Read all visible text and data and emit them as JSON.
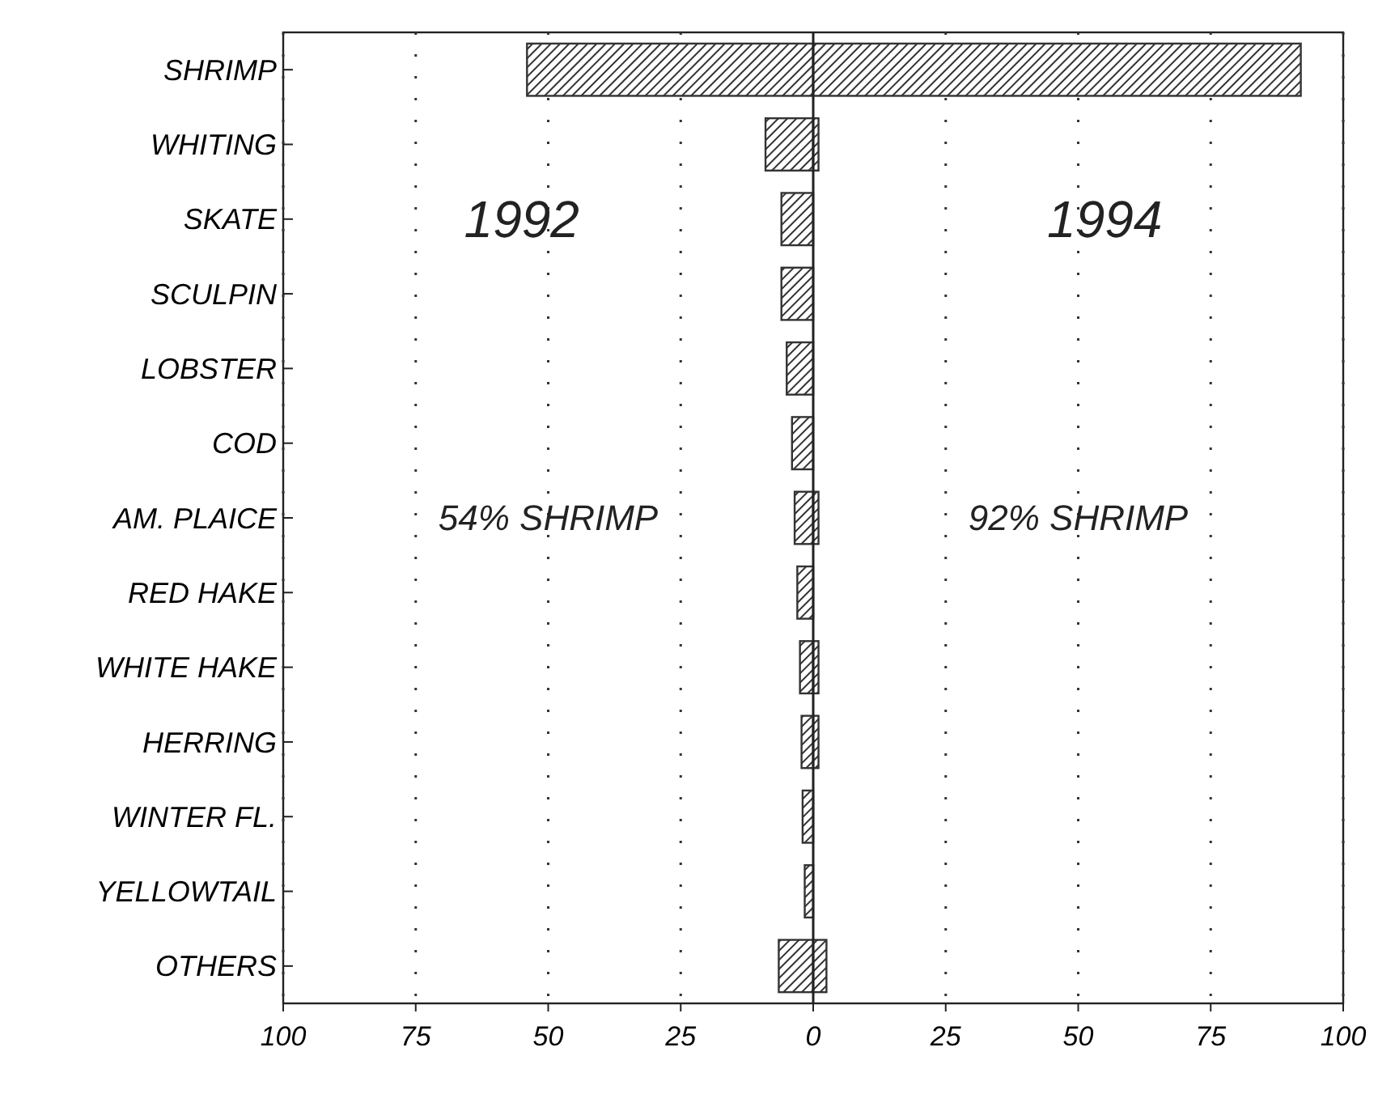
{
  "chart_data": {
    "type": "bar",
    "orientation": "horizontal",
    "categories": [
      "SHRIMP",
      "WHITING",
      "SKATE",
      "SCULPIN",
      "LOBSTER",
      "COD",
      "AM. PLAICE",
      "RED HAKE",
      "WHITE HAKE",
      "HERRING",
      "WINTER FL.",
      "YELLOWTAIL",
      "OTHERS"
    ],
    "series": [
      {
        "name": "1992",
        "color": "#333333",
        "values": [
          -54,
          -9,
          -6,
          -6,
          -5,
          -4,
          -3.5,
          -3,
          -2.5,
          -2.2,
          -2,
          -1.6,
          -6.5
        ]
      },
      {
        "name": "1994",
        "color": "#333333",
        "values": [
          92,
          1,
          null,
          null,
          null,
          null,
          1,
          null,
          1,
          1,
          null,
          null,
          2.5
        ]
      }
    ],
    "xlim": [
      -100,
      100
    ],
    "xticks": [
      {
        "value": -100,
        "label": "100"
      },
      {
        "value": -75,
        "label": "75"
      },
      {
        "value": -50,
        "label": "50"
      },
      {
        "value": -25,
        "label": "25"
      },
      0,
      25,
      50,
      75,
      100
    ],
    "grid": "x",
    "annotations": [
      "54% SHRIMP",
      "92% SHRIMP"
    ]
  }
}
